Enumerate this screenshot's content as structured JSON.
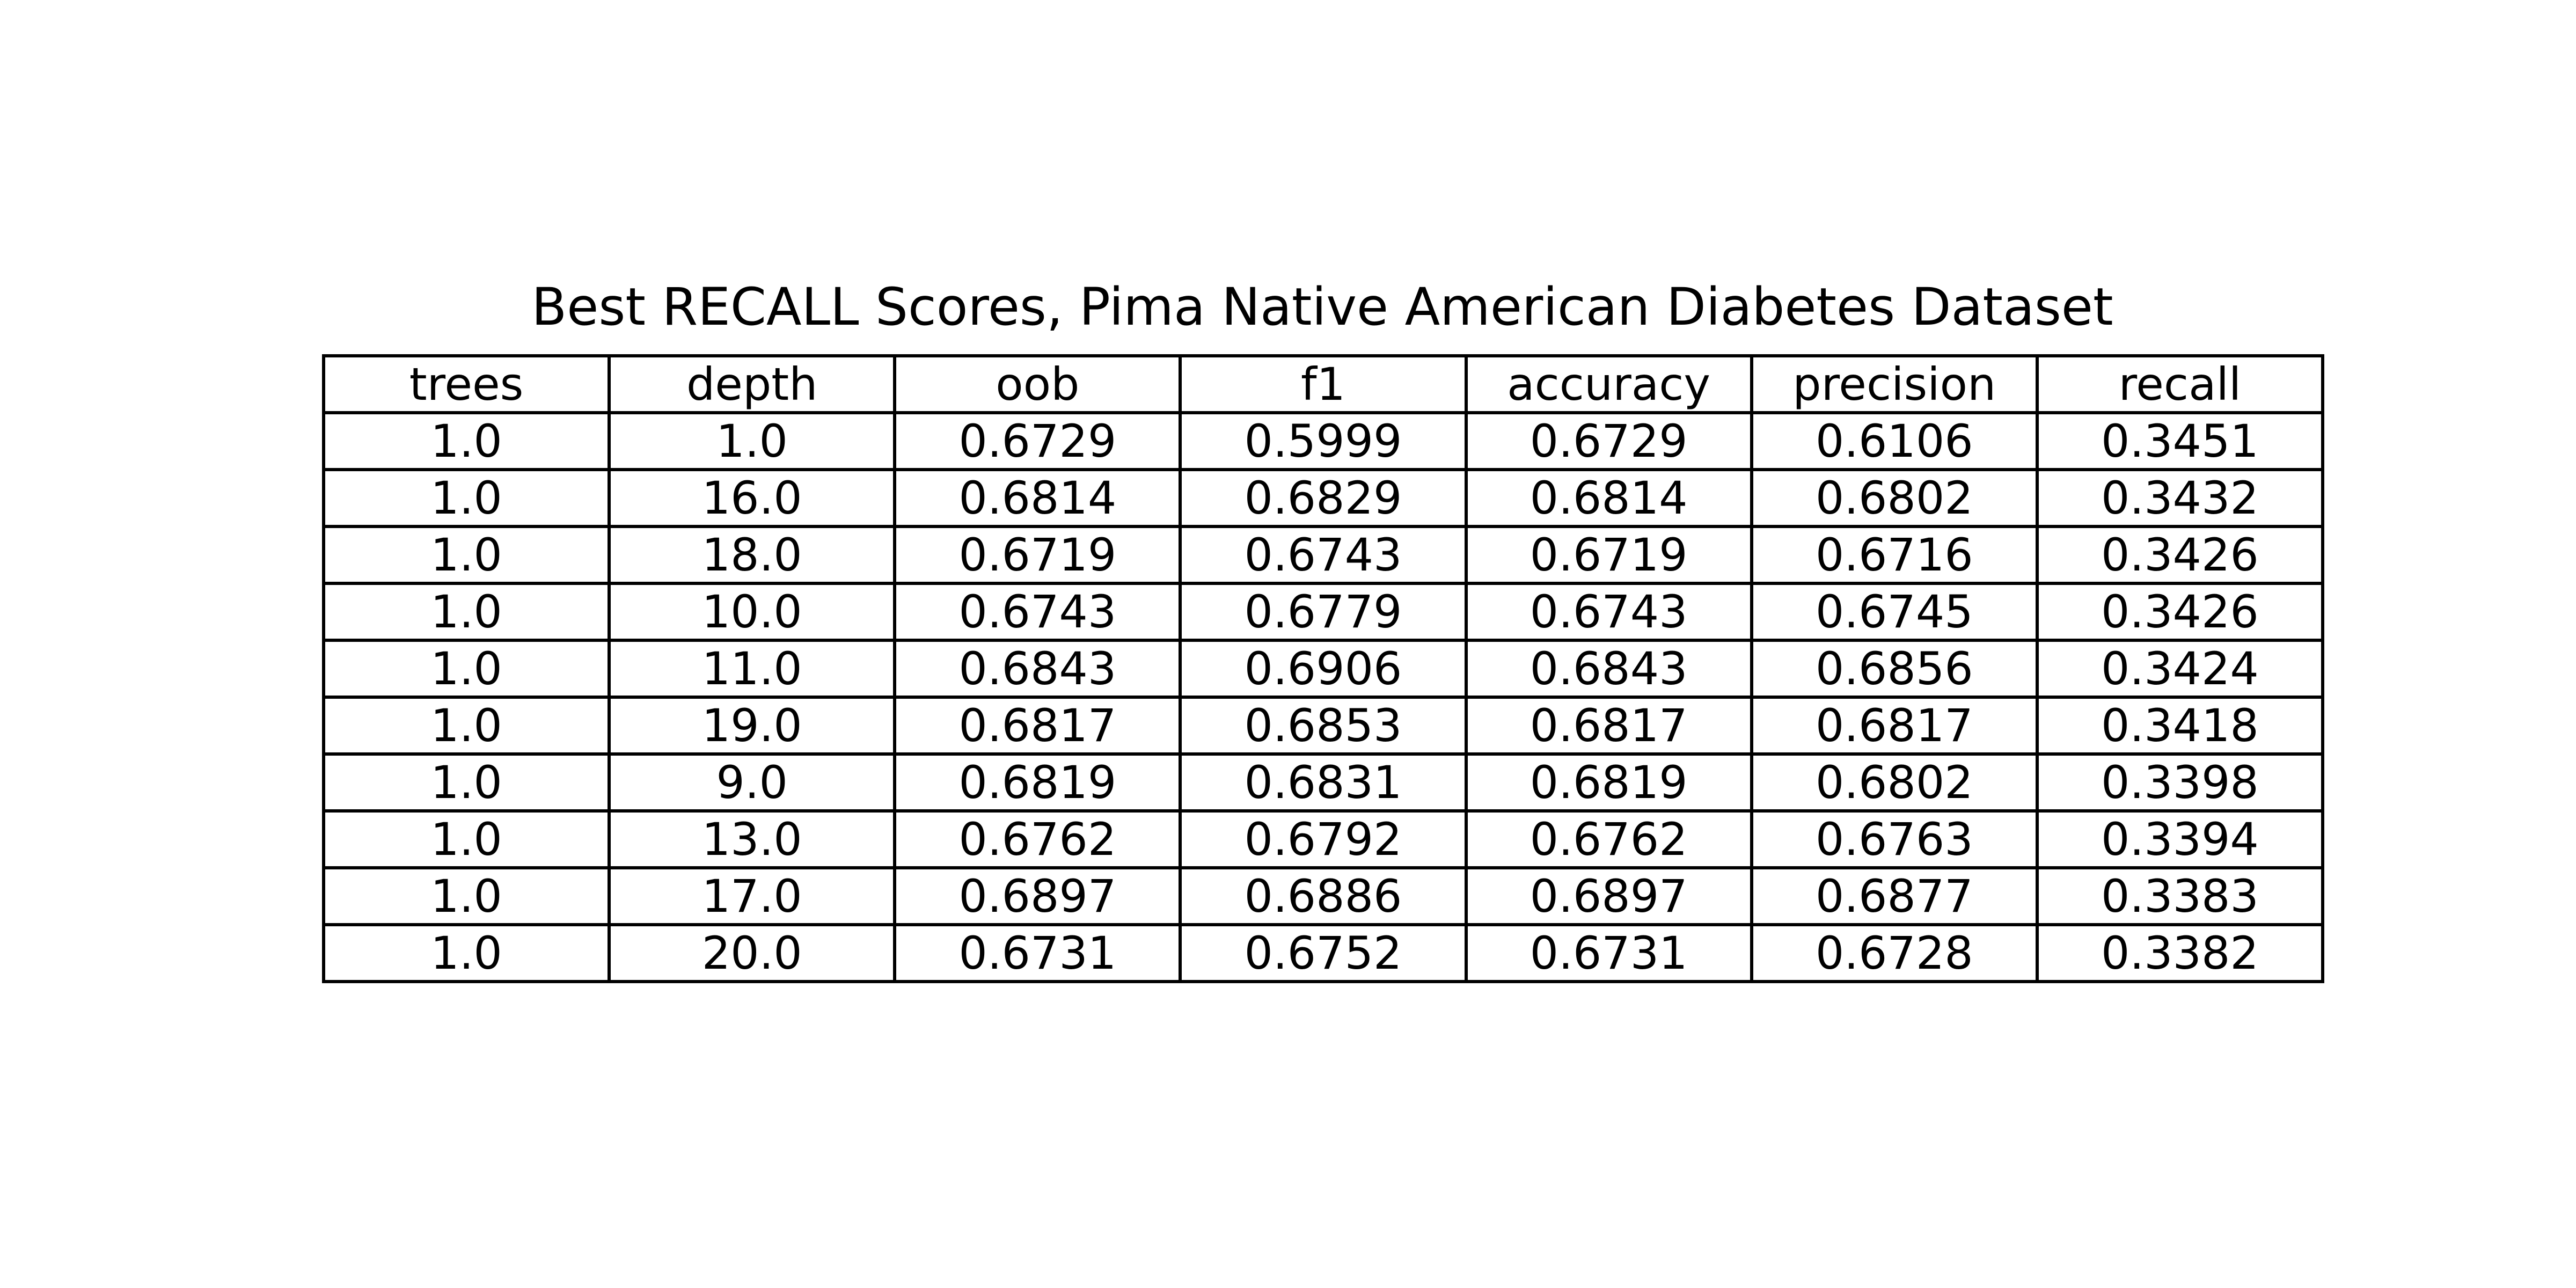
{
  "chart_data": {
    "type": "table",
    "title": "Best RECALL Scores, Pima Native American Diabetes Dataset",
    "columns": [
      "trees",
      "depth",
      "oob",
      "f1",
      "accuracy",
      "precision",
      "recall"
    ],
    "rows": [
      [
        "1.0",
        "1.0",
        "0.6729",
        "0.5999",
        "0.6729",
        "0.6106",
        "0.3451"
      ],
      [
        "1.0",
        "16.0",
        "0.6814",
        "0.6829",
        "0.6814",
        "0.6802",
        "0.3432"
      ],
      [
        "1.0",
        "18.0",
        "0.6719",
        "0.6743",
        "0.6719",
        "0.6716",
        "0.3426"
      ],
      [
        "1.0",
        "10.0",
        "0.6743",
        "0.6779",
        "0.6743",
        "0.6745",
        "0.3426"
      ],
      [
        "1.0",
        "11.0",
        "0.6843",
        "0.6906",
        "0.6843",
        "0.6856",
        "0.3424"
      ],
      [
        "1.0",
        "19.0",
        "0.6817",
        "0.6853",
        "0.6817",
        "0.6817",
        "0.3418"
      ],
      [
        "1.0",
        "9.0",
        "0.6819",
        "0.6831",
        "0.6819",
        "0.6802",
        "0.3398"
      ],
      [
        "1.0",
        "13.0",
        "0.6762",
        "0.6792",
        "0.6762",
        "0.6763",
        "0.3394"
      ],
      [
        "1.0",
        "17.0",
        "0.6897",
        "0.6886",
        "0.6897",
        "0.6877",
        "0.3383"
      ],
      [
        "1.0",
        "20.0",
        "0.6731",
        "0.6752",
        "0.6731",
        "0.6728",
        "0.3382"
      ]
    ]
  }
}
